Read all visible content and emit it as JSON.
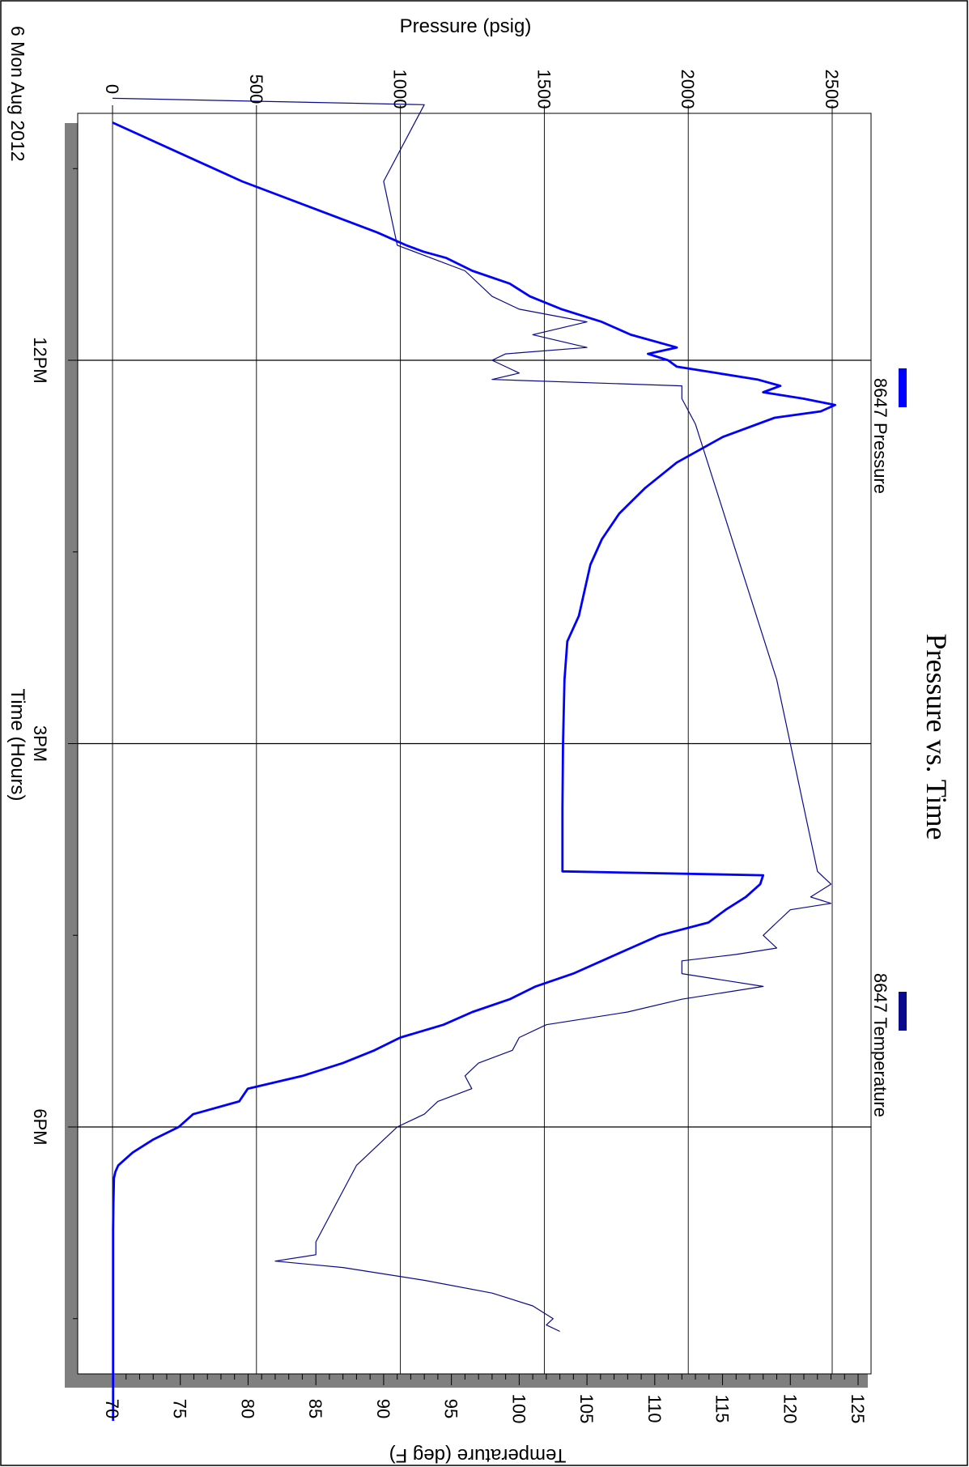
{
  "chart_data": {
    "type": "line",
    "title": "Pressure vs. Time",
    "date_label": "6 Mon Aug 2012",
    "xlabel": "Time (Hours)",
    "y_left_label": "Pressure (psig)",
    "y_right_label": "Temperature (deg F)",
    "orientation": "rotated 90° clockwise (time runs top to bottom)",
    "x_range_hours": [
      9.5,
      20.75
    ],
    "x_ticks": [
      {
        "hour": 12,
        "label": "12PM"
      },
      {
        "hour": 15,
        "label": "3PM"
      },
      {
        "hour": 18,
        "label": "6PM"
      }
    ],
    "pressure_ylim": [
      0,
      2600
    ],
    "pressure_ticks": [
      0,
      500,
      1000,
      1500,
      2000,
      2500
    ],
    "temperature_ylim": [
      70,
      125
    ],
    "temperature_ticks": [
      70,
      75,
      80,
      85,
      90,
      95,
      100,
      105,
      110,
      115,
      120,
      125
    ],
    "grid": true,
    "legend_position": "right",
    "series": [
      {
        "name": "8647 Pressure",
        "color": "#0000ff",
        "axis": "pressure",
        "x_hours": [
          10.14,
          10.6,
          11.0,
          11.1,
          11.15,
          11.2,
          11.3,
          11.4,
          11.5,
          11.6,
          11.7,
          11.8,
          11.9,
          11.95,
          12.0,
          12.05,
          12.1,
          12.15,
          12.2,
          12.25,
          12.3,
          12.35,
          12.4,
          12.45,
          12.6,
          12.8,
          13.0,
          13.2,
          13.4,
          13.6,
          13.8,
          14.0,
          14.2,
          14.5,
          15.0,
          15.5,
          16.0,
          16.03,
          16.1,
          16.2,
          16.3,
          16.4,
          16.5,
          16.6,
          16.7,
          16.8,
          16.9,
          17.0,
          17.1,
          17.2,
          17.3,
          17.4,
          17.5,
          17.6,
          17.7,
          17.8,
          17.9,
          18.0,
          18.1,
          18.2,
          18.3,
          18.35,
          18.4,
          18.6,
          18.8,
          19.0,
          19.2,
          19.4,
          20.3
        ],
        "values": [
          0,
          450,
          920,
          1020,
          1080,
          1160,
          1250,
          1380,
          1450,
          1560,
          1700,
          1800,
          1960,
          1860,
          1930,
          1960,
          2100,
          2240,
          2320,
          2260,
          2400,
          2510,
          2460,
          2300,
          2120,
          1960,
          1850,
          1760,
          1700,
          1660,
          1640,
          1620,
          1580,
          1570,
          1565,
          1563,
          1563,
          2260,
          2250,
          2200,
          2130,
          2070,
          1900,
          1800,
          1700,
          1600,
          1470,
          1380,
          1250,
          1150,
          1000,
          910,
          800,
          660,
          470,
          440,
          280,
          230,
          140,
          70,
          20,
          10,
          5,
          3,
          2,
          2,
          2,
          2,
          2
        ]
      },
      {
        "name": "8647 Temperature",
        "color": "#0a0a8c",
        "axis": "temperature",
        "x_hours": [
          9.95,
          10.0,
          10.6,
          11.1,
          11.3,
          11.5,
          11.6,
          11.7,
          11.8,
          11.9,
          11.95,
          12.0,
          12.1,
          12.15,
          12.2,
          12.3,
          12.4,
          12.5,
          12.6,
          13.0,
          13.5,
          14.0,
          14.5,
          15.0,
          15.5,
          16.0,
          16.1,
          16.2,
          16.25,
          16.3,
          16.4,
          16.5,
          16.6,
          16.65,
          16.7,
          16.8,
          16.9,
          17.0,
          17.1,
          17.2,
          17.3,
          17.4,
          17.5,
          17.6,
          17.7,
          17.8,
          17.9,
          18.0,
          18.1,
          18.2,
          18.3,
          18.5,
          18.7,
          18.9,
          19.0,
          19.05,
          19.1,
          19.2,
          19.3,
          19.4,
          19.5,
          19.55,
          19.6
        ],
        "values": [
          70,
          93,
          90,
          91,
          96,
          98,
          100,
          105,
          101,
          105,
          99,
          98,
          100,
          98,
          112,
          112,
          112.5,
          113,
          113.3,
          114.5,
          116,
          117.5,
          119,
          120,
          121,
          122,
          123,
          121.5,
          123,
          120,
          119,
          118,
          119,
          116,
          112,
          112,
          118,
          112,
          108,
          102,
          100,
          99.5,
          97,
          96,
          96.5,
          94,
          93,
          91,
          90,
          89,
          88,
          87,
          86,
          85,
          85,
          82,
          87,
          93,
          98,
          101,
          102.5,
          102,
          103
        ]
      }
    ]
  }
}
